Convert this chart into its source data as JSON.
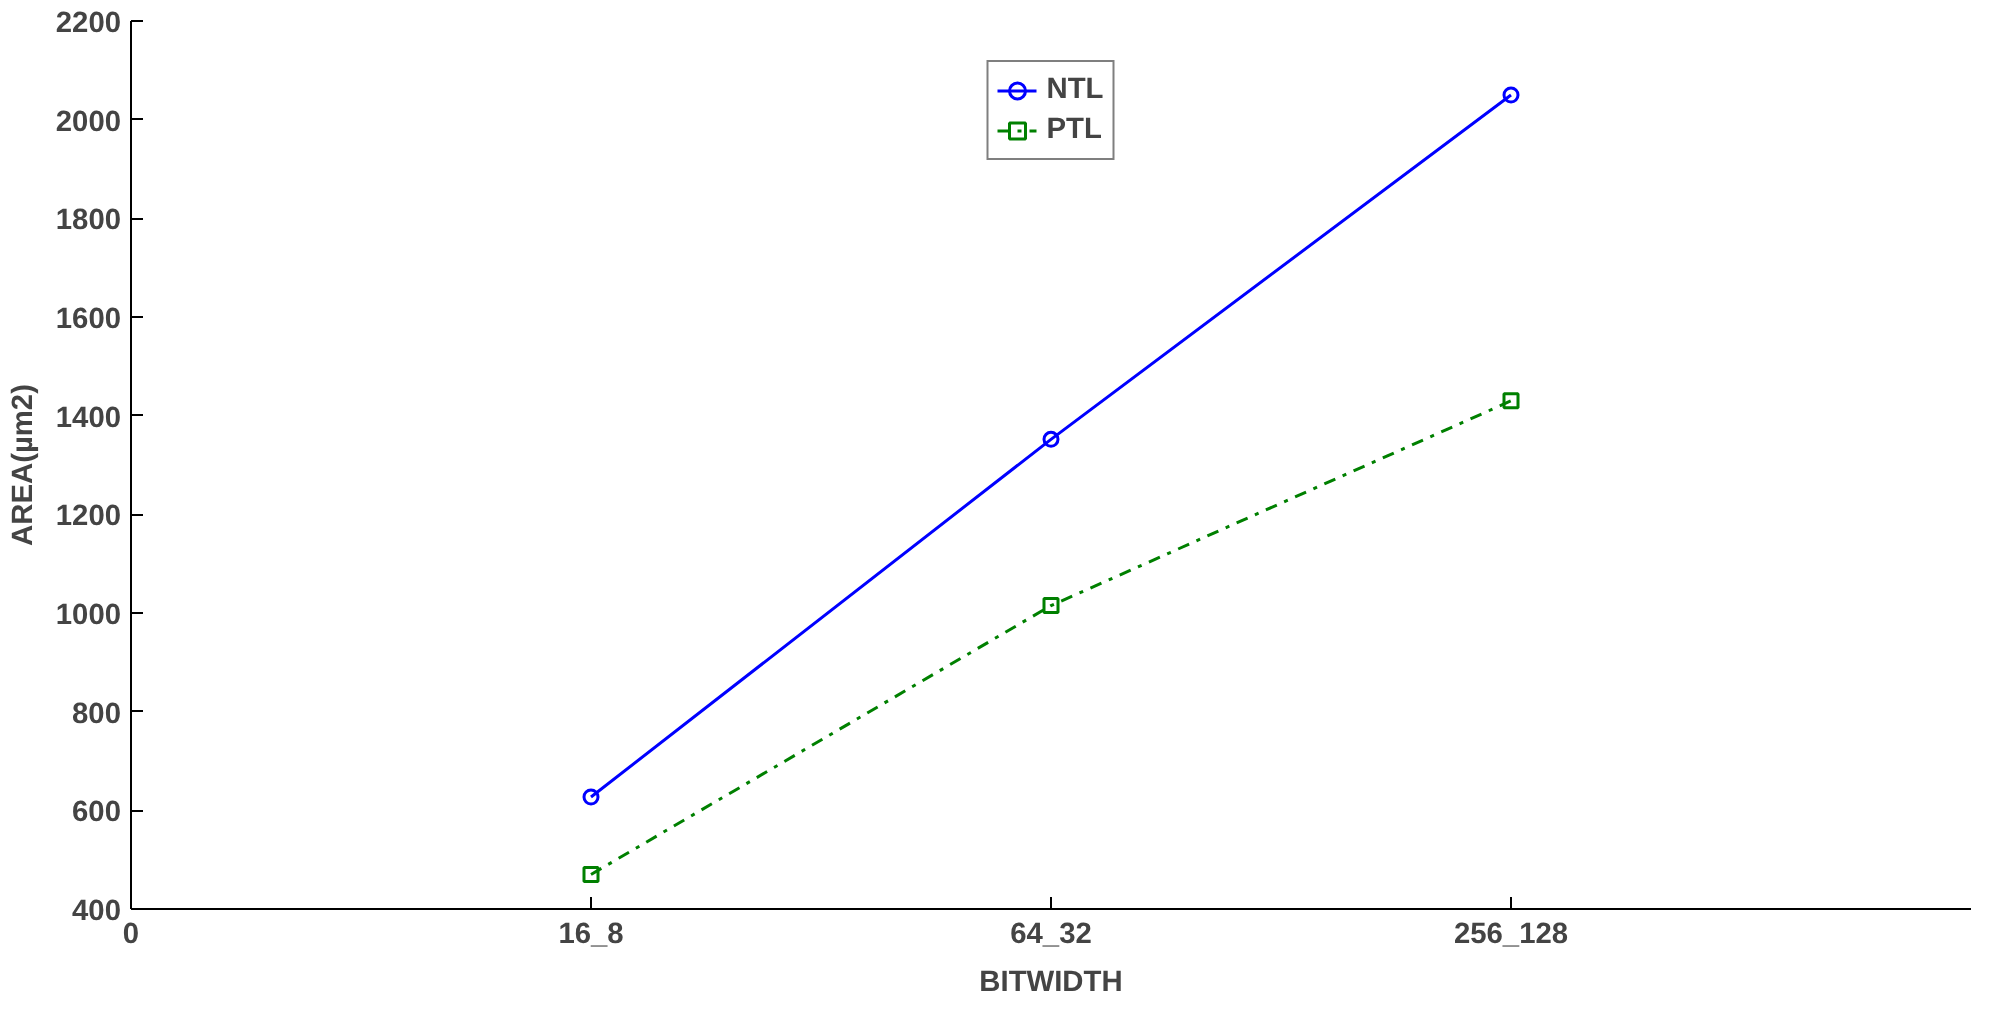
{
  "chart_data": {
    "type": "line",
    "xlabel": "BITWIDTH",
    "ylabel": "AREA(µm2)",
    "categories": [
      "0",
      "16_8",
      "64_32",
      "256_128"
    ],
    "series": [
      {
        "name": "NTL",
        "color": "#0000ff",
        "values": [
          null,
          627,
          1352,
          2050
        ],
        "marker": "circle",
        "line_style": "solid"
      },
      {
        "name": "PTL",
        "color": "#008000",
        "values": [
          null,
          470,
          1015,
          1430
        ],
        "marker": "square",
        "line_style": "dashdot"
      }
    ],
    "ylim": [
      400,
      2200
    ],
    "yticks": [
      400,
      600,
      800,
      1000,
      1200,
      1400,
      1600,
      1800,
      2000,
      2200
    ],
    "grid": false,
    "legend": "top"
  }
}
